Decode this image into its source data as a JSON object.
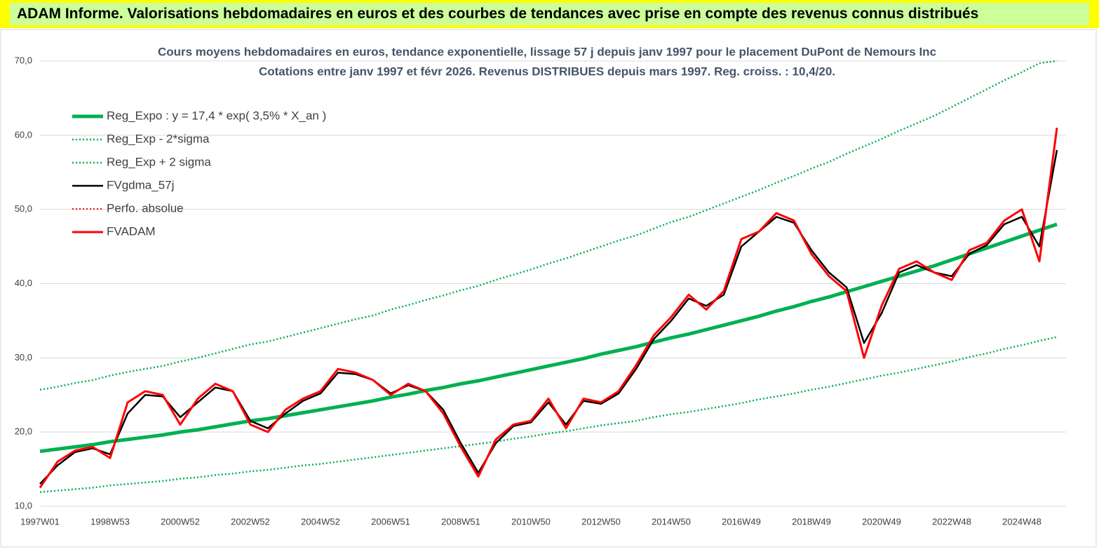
{
  "header": {
    "title": "ADAM Informe. Valorisations hebdomadaires en euros et des courbes de tendances avec prise en compte des revenus connus distribués"
  },
  "chart_data": {
    "type": "line",
    "title": "Cours moyens hebdomadaires en euros, tendance exponentielle, lissage 57 j depuis janv 1997 pour le placement DuPont de Nemours Inc",
    "subtitle": "Cotations entre janv 1997 et févr 2026. Revenus DISTRIBUES depuis mars 1997. Reg. croiss. : 10,4/20.",
    "categories": [
      "1997W01",
      null,
      null,
      null,
      "1998W53",
      null,
      null,
      null,
      "2000W52",
      null,
      null,
      null,
      "2002W52",
      null,
      null,
      null,
      "2004W52",
      null,
      null,
      null,
      "2006W51",
      null,
      null,
      null,
      "2008W51",
      null,
      null,
      null,
      "2010W50",
      null,
      null,
      null,
      "2012W50",
      null,
      null,
      null,
      "2014W50",
      null,
      null,
      null,
      "2016W49",
      null,
      null,
      null,
      "2018W49",
      null,
      null,
      null,
      "2020W49",
      null,
      null,
      null,
      "2022W48",
      null,
      null,
      null,
      "2024W48",
      null,
      null
    ],
    "ylim": [
      10,
      70
    ],
    "yticks": [
      {
        "value": 10,
        "label": "10,0"
      },
      {
        "value": 20,
        "label": "20,0"
      },
      {
        "value": 30,
        "label": "30,0"
      },
      {
        "value": 40,
        "label": "40,0"
      },
      {
        "value": 50,
        "label": "50,0"
      },
      {
        "value": 60,
        "label": "60,0"
      },
      {
        "value": 70,
        "label": "70,0"
      }
    ],
    "grid": true,
    "legend": "upper left",
    "series": [
      {
        "name": "Reg_Expo : y = 17,4 * exp( 3,5% *  X_an )",
        "color": "#00b050",
        "style": "solid",
        "values": [
          17.4,
          17.7,
          18.0,
          18.3,
          18.7,
          19.0,
          19.3,
          19.6,
          20.0,
          20.3,
          20.7,
          21.1,
          21.5,
          21.8,
          22.2,
          22.6,
          23.0,
          23.4,
          23.8,
          24.2,
          24.7,
          25.1,
          25.6,
          26.0,
          26.5,
          26.9,
          27.4,
          27.9,
          28.4,
          28.9,
          29.4,
          29.9,
          30.5,
          31.0,
          31.5,
          32.1,
          32.7,
          33.2,
          33.8,
          34.4,
          35.0,
          35.6,
          36.3,
          36.9,
          37.6,
          38.2,
          38.9,
          39.6,
          40.3,
          41.0,
          41.7,
          42.4,
          43.2,
          44.0,
          44.8,
          45.6,
          46.4,
          47.2,
          48.0
        ]
      },
      {
        "name": "Reg_Exp - 2*sigma",
        "color": "#00b050",
        "style": "dotted",
        "values": [
          11.9,
          12.1,
          12.3,
          12.5,
          12.8,
          13.0,
          13.2,
          13.4,
          13.7,
          13.9,
          14.2,
          14.4,
          14.7,
          14.9,
          15.2,
          15.5,
          15.7,
          16.0,
          16.3,
          16.6,
          16.9,
          17.2,
          17.5,
          17.8,
          18.1,
          18.4,
          18.7,
          19.1,
          19.4,
          19.8,
          20.1,
          20.5,
          20.9,
          21.2,
          21.5,
          22.0,
          22.4,
          22.7,
          23.1,
          23.5,
          23.9,
          24.4,
          24.8,
          25.2,
          25.7,
          26.1,
          26.6,
          27.1,
          27.6,
          28.0,
          28.5,
          29.0,
          29.5,
          30.1,
          30.6,
          31.2,
          31.7,
          32.3,
          32.8
        ]
      },
      {
        "name": "Reg_Exp + 2 sigma",
        "color": "#00b050",
        "style": "dotted",
        "values": [
          25.7,
          26.1,
          26.6,
          27.0,
          27.6,
          28.1,
          28.5,
          28.9,
          29.5,
          30.0,
          30.6,
          31.2,
          31.8,
          32.2,
          32.8,
          33.4,
          34.0,
          34.6,
          35.2,
          35.7,
          36.5,
          37.1,
          37.8,
          38.4,
          39.1,
          39.7,
          40.5,
          41.2,
          41.9,
          42.7,
          43.4,
          44.2,
          45.0,
          45.8,
          46.5,
          47.4,
          48.3,
          49.0,
          49.9,
          50.8,
          51.7,
          52.6,
          53.6,
          54.5,
          55.5,
          56.4,
          57.5,
          58.5,
          59.5,
          60.6,
          61.6,
          62.6,
          63.8,
          65.0,
          66.2,
          67.4,
          68.5,
          69.7,
          70
        ]
      },
      {
        "name": "FVgdma_57j",
        "color": "#000000",
        "style": "solid",
        "values": [
          13,
          15.5,
          17.3,
          17.8,
          17,
          22.5,
          25,
          24.8,
          22,
          24,
          26,
          25.5,
          21.5,
          20.5,
          22.5,
          24.2,
          25.2,
          28,
          27.8,
          27,
          25.2,
          26.3,
          25.5,
          23,
          18.5,
          14.5,
          18.5,
          20.8,
          21.3,
          24,
          21,
          24.2,
          23.8,
          25.2,
          28.5,
          32.5,
          35,
          38,
          37,
          38.5,
          45,
          47,
          49,
          48.2,
          44.5,
          41.5,
          39.5,
          32,
          36,
          41.5,
          42.5,
          41.5,
          41,
          44,
          45.2,
          48,
          49,
          45,
          58
        ]
      },
      {
        "name": "Perfo. absolue",
        "color": "#ff0000",
        "style": "dotted",
        "values": [
          12.5,
          16,
          17.5,
          18,
          16.5,
          24,
          25.5,
          25,
          21,
          24.5,
          26.5,
          25.5,
          21,
          20,
          23,
          24.5,
          25.5,
          28.5,
          28,
          27,
          25,
          26.5,
          25.5,
          22.5,
          18,
          14,
          19,
          21,
          21.5,
          24.5,
          20.5,
          24.5,
          24,
          25.5,
          29,
          33,
          35.5,
          38.5,
          36.5,
          39,
          46,
          47,
          49.5,
          48.5,
          44,
          41,
          39,
          30,
          37,
          42,
          43,
          41.5,
          40.5,
          44.5,
          45.5,
          48.5,
          50,
          43,
          61
        ]
      },
      {
        "name": "FVADAM",
        "color": "#ff0000",
        "style": "solid",
        "values": [
          12.5,
          16,
          17.5,
          18,
          16.5,
          24,
          25.5,
          25,
          21,
          24.5,
          26.5,
          25.5,
          21,
          20,
          23,
          24.5,
          25.5,
          28.5,
          28,
          27,
          25,
          26.5,
          25.5,
          22.5,
          18,
          14,
          19,
          21,
          21.5,
          24.5,
          20.5,
          24.5,
          24,
          25.5,
          29,
          33,
          35.5,
          38.5,
          36.5,
          39,
          46,
          47,
          49.5,
          48.5,
          44,
          41,
          39,
          30,
          37,
          42,
          43,
          41.5,
          40.5,
          44.5,
          45.5,
          48.5,
          50,
          43,
          61
        ]
      }
    ]
  }
}
